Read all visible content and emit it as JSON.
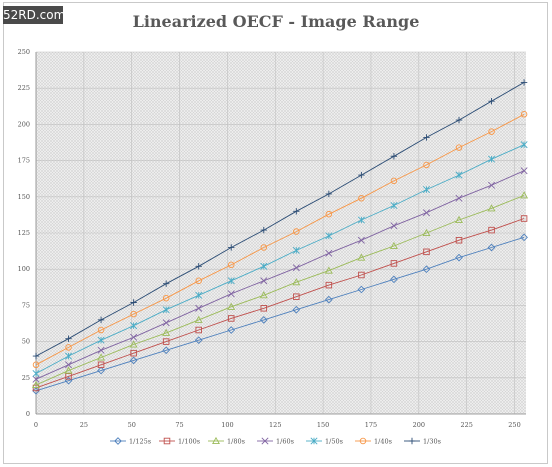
{
  "watermark": "52RD.com",
  "chart_data": {
    "type": "line",
    "title": "Linearized OECF - Image Range",
    "xlabel": "",
    "ylabel": "",
    "xlim": [
      0,
      256
    ],
    "ylim": [
      0,
      250
    ],
    "xticks": [
      "0",
      "25",
      "50",
      "75",
      "100",
      "125",
      "150",
      "175",
      "200",
      "225",
      "250"
    ],
    "yticks": [
      "0",
      "25",
      "50",
      "75",
      "100",
      "125",
      "150",
      "175",
      "200",
      "225",
      "250"
    ],
    "x": [
      0,
      17,
      34,
      51,
      68,
      85,
      102,
      119,
      136,
      153,
      170,
      187,
      204,
      221,
      238,
      255
    ],
    "grid": true,
    "legend_position": "bottom",
    "series": [
      {
        "name": "1/125s",
        "marker": "diamond",
        "color": "#4f81bd",
        "values": [
          16,
          23,
          30,
          37,
          44,
          51,
          58,
          65,
          72,
          79,
          86,
          93,
          100,
          108,
          115,
          122
        ]
      },
      {
        "name": "1/100s",
        "marker": "square",
        "color": "#c0504d",
        "values": [
          18,
          26,
          34,
          42,
          50,
          58,
          66,
          73,
          81,
          89,
          96,
          104,
          112,
          120,
          127,
          135
        ]
      },
      {
        "name": "1/80s",
        "marker": "triangle",
        "color": "#9bbb59",
        "values": [
          20,
          30,
          39,
          48,
          56,
          65,
          74,
          82,
          91,
          99,
          108,
          116,
          125,
          134,
          142,
          151
        ]
      },
      {
        "name": "1/60s",
        "marker": "x",
        "color": "#8064a2",
        "values": [
          24,
          34,
          44,
          53,
          63,
          73,
          83,
          92,
          101,
          111,
          120,
          130,
          139,
          149,
          158,
          168
        ]
      },
      {
        "name": "1/50s",
        "marker": "star",
        "color": "#4bacc6",
        "values": [
          28,
          40,
          51,
          61,
          72,
          82,
          92,
          102,
          113,
          123,
          134,
          144,
          155,
          165,
          176,
          186
        ]
      },
      {
        "name": "1/40s",
        "marker": "circle",
        "color": "#f79646",
        "values": [
          34,
          46,
          58,
          69,
          80,
          92,
          103,
          115,
          126,
          138,
          149,
          161,
          172,
          184,
          195,
          207
        ]
      },
      {
        "name": "1/30s",
        "marker": "plus",
        "color": "#2c4d75",
        "values": [
          40,
          52,
          65,
          77,
          90,
          102,
          115,
          127,
          140,
          152,
          165,
          178,
          191,
          203,
          216,
          229
        ]
      }
    ]
  }
}
